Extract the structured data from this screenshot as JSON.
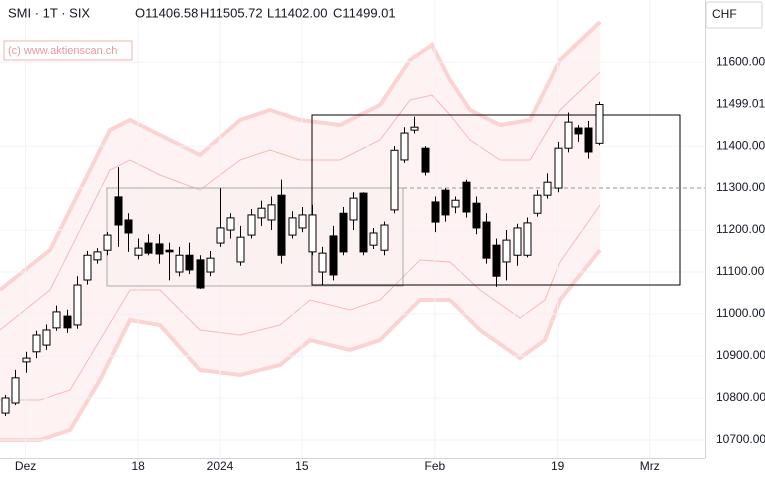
{
  "chart_data": {
    "type": "candlestick",
    "title": "SMI · 1T · SIX",
    "ohlc_header": [
      "O11406.58",
      "H11505.72",
      "L11402.00",
      "C11499.01"
    ],
    "watermark": "(c) www.aktienscan.ch",
    "y_axis_label": "CHF",
    "price_marker": 11499.01,
    "up_color": "#ffffff",
    "down_color": "#000000",
    "grid": true,
    "xlim": [
      -0.5,
      68.4
    ],
    "xticks": [
      {
        "value": 2,
        "label": "Dez"
      },
      {
        "value": 13,
        "label": "18"
      },
      {
        "value": 21,
        "label": "2024"
      },
      {
        "value": 29,
        "label": "15"
      },
      {
        "value": 42,
        "label": "Feb"
      },
      {
        "value": 54,
        "label": "19"
      },
      {
        "value": 63,
        "label": "Mrz"
      }
    ],
    "ylim": [
      10657,
      11748
    ],
    "yticks": [
      {
        "value": 10700,
        "label": "10700.00"
      },
      {
        "value": 10800,
        "label": "10800.00"
      },
      {
        "value": 10900,
        "label": "10900.00"
      },
      {
        "value": 11000,
        "label": "11000.00"
      },
      {
        "value": 11100,
        "label": "11100.00"
      },
      {
        "value": 11200,
        "label": "11200.00"
      },
      {
        "value": 11300,
        "label": "11300.00"
      },
      {
        "value": 11400,
        "label": "11400.00"
      },
      {
        "value": 11600,
        "label": "11600.00"
      }
    ],
    "open": [
      10764,
      10788,
      10886,
      10910,
      10926,
      10967,
      10995,
      10974,
      11081,
      11129,
      11152,
      11279,
      11224,
      11140,
      11169,
      11167,
      11152,
      11100,
      11140,
      11129,
      11100,
      11169,
      11200,
      11124,
      11188,
      11229,
      11224,
      11283,
      11188,
      11205,
      11148,
      11100,
      11186,
      11240,
      11224,
      11288,
      11164,
      11152,
      11248,
      11367,
      11438,
      11395,
      11267,
      11295,
      11255,
      11314,
      11264,
      11219,
      11164,
      11124,
      11140,
      11140,
      11240,
      11283,
      11300,
      11395,
      11443,
      11443,
      11406.58
    ],
    "high": [
      10807,
      10867,
      10910,
      10960,
      10975,
      11020,
      11010,
      11090,
      11150,
      11157,
      11195,
      11350,
      11240,
      11180,
      11190,
      11190,
      11170,
      11160,
      11170,
      11140,
      11150,
      11300,
      11240,
      11210,
      11250,
      11270,
      11280,
      11320,
      11245,
      11255,
      11260,
      11160,
      11210,
      11255,
      11290,
      11290,
      11205,
      11220,
      11400,
      11445,
      11470,
      11400,
      11280,
      11300,
      11280,
      11320,
      11280,
      11240,
      11180,
      11200,
      11215,
      11230,
      11295,
      11335,
      11410,
      11480,
      11450,
      11460,
      11505.72
    ],
    "low": [
      10757,
      10783,
      10860,
      10895,
      10915,
      10960,
      10955,
      10965,
      11070,
      11120,
      11140,
      11160,
      11148,
      11130,
      11140,
      11120,
      11080,
      11090,
      11095,
      11060,
      11090,
      11160,
      11180,
      11115,
      11180,
      11210,
      11200,
      11120,
      11180,
      11195,
      11140,
      11070,
      11080,
      11140,
      11200,
      11140,
      11155,
      11140,
      11240,
      11360,
      11430,
      11330,
      11195,
      11220,
      11240,
      11230,
      11190,
      11120,
      11065,
      11080,
      11115,
      11135,
      11232,
      11275,
      11290,
      11385,
      11410,
      11370,
      11402.0
    ],
    "close": [
      10800,
      10848,
      10895,
      10950,
      10962,
      11005,
      10967,
      11069,
      11140,
      11148,
      11188,
      11212,
      11193,
      11157,
      11145,
      11143,
      11148,
      11140,
      11105,
      11062,
      11133,
      11205,
      11229,
      11183,
      11236,
      11252,
      11260,
      11140,
      11229,
      11236,
      11236,
      11145,
      11093,
      11148,
      11276,
      11148,
      11193,
      11212,
      11390,
      11431,
      11445,
      11338,
      11219,
      11236,
      11271,
      11243,
      11205,
      11133,
      11090,
      11176,
      11205,
      11217,
      11283,
      11314,
      11395,
      11457,
      11429,
      11386,
      11499.01
    ]
  }
}
